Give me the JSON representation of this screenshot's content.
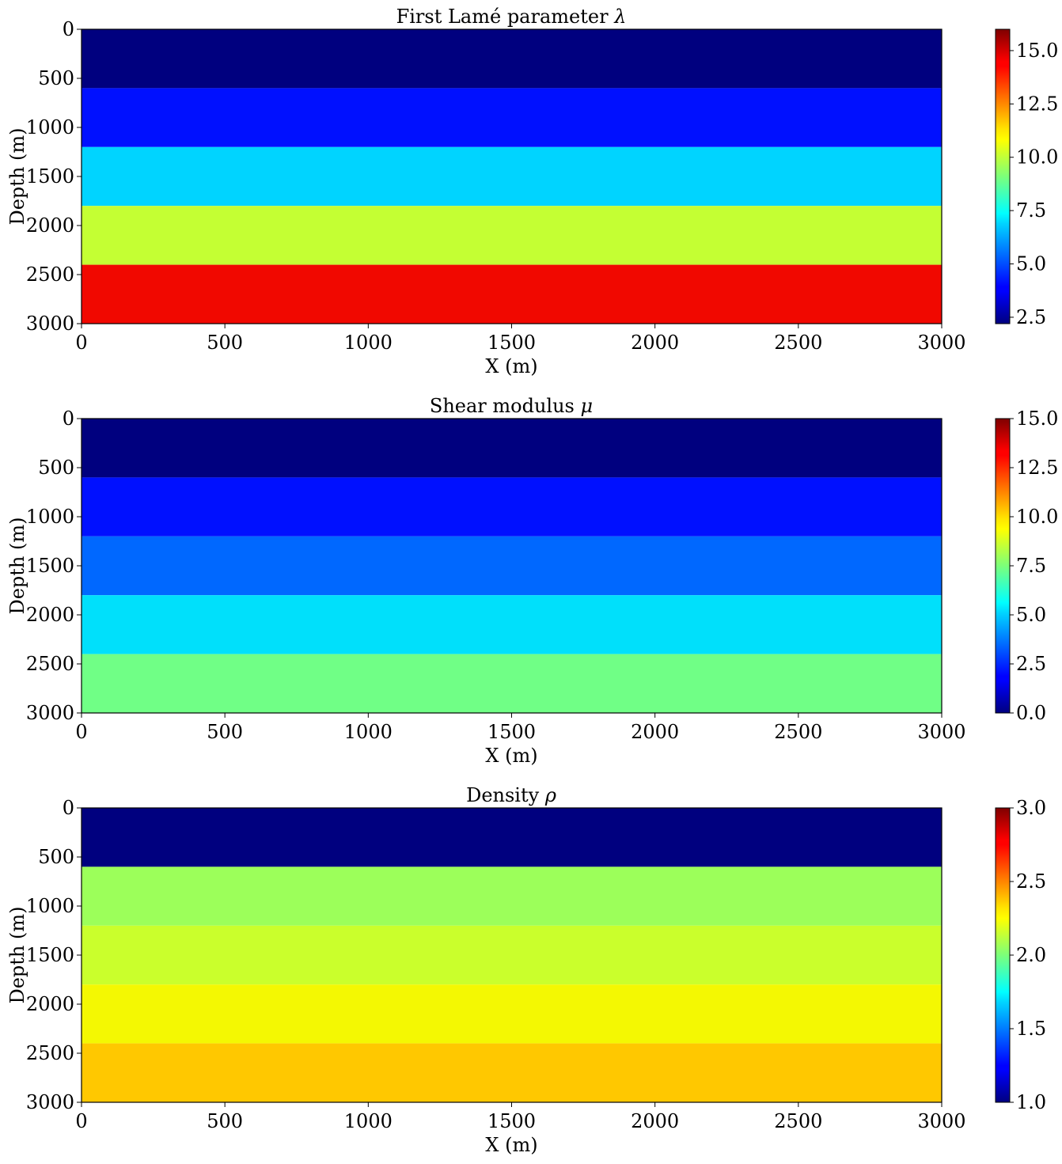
{
  "chart_data": [
    {
      "type": "heatmap",
      "title": "First Lamé parameter λ",
      "title_text": "First Lamé parameter ",
      "title_symbol": "λ",
      "xlabel": "X (m)",
      "ylabel": "Depth (m)",
      "xlim": [
        0,
        3000
      ],
      "ylim": [
        3000,
        0
      ],
      "xticks": [
        "0",
        "500",
        "1000",
        "1500",
        "2000",
        "2500",
        "3000"
      ],
      "yticks": [
        "0",
        "500",
        "1000",
        "1500",
        "2000",
        "2500",
        "3000"
      ],
      "colormap": "jet",
      "colorbar": {
        "range": [
          2.2,
          16.0
        ],
        "ticks": [
          2.5,
          5.0,
          7.5,
          10.0,
          12.5,
          15.0
        ],
        "tick_labels": [
          "2.5",
          "5.0",
          "7.5",
          "10.0",
          "12.5",
          "15.0"
        ]
      },
      "layers": [
        {
          "depth": [
            0,
            600
          ],
          "color": "#00007f"
        },
        {
          "depth": [
            600,
            1200
          ],
          "color": "#0010ff"
        },
        {
          "depth": [
            1200,
            1800
          ],
          "color": "#00d4ff"
        },
        {
          "depth": [
            1800,
            2400
          ],
          "color": "#c4ff33"
        },
        {
          "depth": [
            2400,
            3000
          ],
          "color": "#f10800"
        }
      ]
    },
    {
      "type": "heatmap",
      "title": "Shear modulus μ",
      "title_text": "Shear modulus ",
      "title_symbol": "μ",
      "xlabel": "X (m)",
      "ylabel": "Depth (m)",
      "xlim": [
        0,
        3000
      ],
      "ylim": [
        3000,
        0
      ],
      "xticks": [
        "0",
        "500",
        "1000",
        "1500",
        "2000",
        "2500",
        "3000"
      ],
      "yticks": [
        "0",
        "500",
        "1000",
        "1500",
        "2000",
        "2500",
        "3000"
      ],
      "colormap": "jet",
      "colorbar": {
        "range": [
          0.0,
          15.0
        ],
        "ticks": [
          0.0,
          2.5,
          5.0,
          7.5,
          10.0,
          12.5,
          15.0
        ],
        "tick_labels": [
          "0.0",
          "2.5",
          "5.0",
          "7.5",
          "10.0",
          "12.5",
          "15.0"
        ]
      },
      "layers": [
        {
          "depth": [
            0,
            600
          ],
          "color": "#00007f"
        },
        {
          "depth": [
            600,
            1200
          ],
          "color": "#0010ff"
        },
        {
          "depth": [
            1200,
            1800
          ],
          "color": "#0068ff"
        },
        {
          "depth": [
            1800,
            2400
          ],
          "color": "#00e0fb"
        },
        {
          "depth": [
            2400,
            3000
          ],
          "color": "#70ff86"
        }
      ]
    },
    {
      "type": "heatmap",
      "title": "Density ρ",
      "title_text": "Density ",
      "title_symbol": "ρ",
      "xlabel": "X (m)",
      "ylabel": "Depth (m)",
      "xlim": [
        0,
        3000
      ],
      "ylim": [
        3000,
        0
      ],
      "xticks": [
        "0",
        "500",
        "1000",
        "1500",
        "2000",
        "2500",
        "3000"
      ],
      "yticks": [
        "0",
        "500",
        "1000",
        "1500",
        "2000",
        "2500",
        "3000"
      ],
      "colormap": "jet",
      "colorbar": {
        "range": [
          1.0,
          3.0
        ],
        "ticks": [
          1.0,
          1.5,
          2.0,
          2.5,
          3.0
        ],
        "tick_labels": [
          "1.0",
          "1.5",
          "2.0",
          "2.5",
          "3.0"
        ]
      },
      "layers": [
        {
          "depth": [
            0,
            600
          ],
          "color": "#00007f"
        },
        {
          "depth": [
            600,
            1200
          ],
          "color": "#9cff5a"
        },
        {
          "depth": [
            1200,
            1800
          ],
          "color": "#caff2c"
        },
        {
          "depth": [
            1800,
            2400
          ],
          "color": "#f4f802"
        },
        {
          "depth": [
            2400,
            3000
          ],
          "color": "#ffc800"
        }
      ]
    }
  ]
}
